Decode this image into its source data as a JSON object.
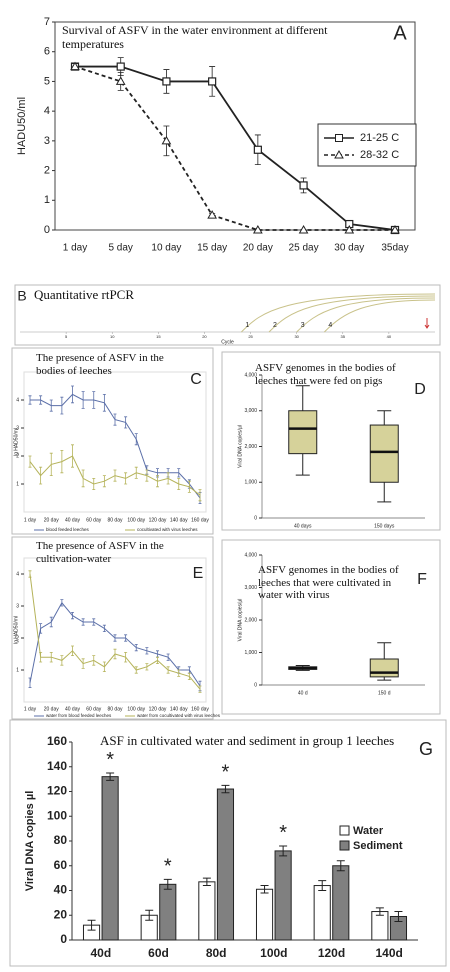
{
  "chart_data": [
    {
      "type": "line",
      "title": "Survival of ASFV in the water environment at different temperatures",
      "label": "A",
      "y_label": "HADU50/ml",
      "categories": [
        "1 day",
        "5 day",
        "10 day",
        "15 day",
        "20 day",
        "25 day",
        "30 day",
        "35day"
      ],
      "ylim": [
        0,
        7
      ],
      "yticks": [
        0,
        1,
        2,
        3,
        4,
        5,
        6,
        7
      ],
      "legend": "right",
      "series": [
        {
          "name": "21-25 C",
          "color": "#222222",
          "marker": "square",
          "dashed": false,
          "values": [
            5.5,
            5.5,
            5.0,
            5.0,
            2.7,
            1.5,
            0.2,
            0.0
          ],
          "errors": [
            0.1,
            0.3,
            0.4,
            0.5,
            0.5,
            0.25,
            0.1,
            0.05
          ]
        },
        {
          "name": "28-32 C",
          "color": "#222222",
          "marker": "triangle",
          "dashed": true,
          "values": [
            5.5,
            5.0,
            3.0,
            0.5,
            0.0,
            0.0,
            0.0,
            0.0
          ],
          "errors": [
            0.1,
            0.3,
            0.5,
            0.05,
            0.0,
            0.0,
            0.0,
            0.0
          ]
        }
      ]
    },
    {
      "type": "amplification",
      "title": "Quantitative rtPCR",
      "label": "B",
      "x_label": "Cycle",
      "xlim": [
        0,
        45
      ],
      "xticks": [
        5,
        10,
        15,
        20,
        25,
        30,
        35,
        40
      ],
      "series": [
        {
          "name": "1",
          "color": "#c9c28a",
          "onset": 24
        },
        {
          "name": "2",
          "color": "#c9c28a",
          "onset": 27
        },
        {
          "name": "3",
          "color": "#c9c28a",
          "onset": 30
        },
        {
          "name": "4",
          "color": "#c9c28a",
          "onset": 33
        }
      ]
    },
    {
      "type": "line",
      "title": "The presence of ASFV in the bodies of leeches",
      "label": "C",
      "y_label": "lg HAD50/ml",
      "categories": [
        "1 day",
        null,
        "20 day",
        null,
        "40 day",
        null,
        "60 day",
        null,
        "80 day",
        null,
        "100 day",
        null,
        "120 day",
        null,
        "140 day",
        null,
        "160 day"
      ],
      "ylim": [
        0,
        5
      ],
      "yticks": [
        1,
        2,
        3,
        4
      ],
      "legend": "bottom",
      "series": [
        {
          "name": "blood feeded leeches",
          "color": "#5b6fa8",
          "values": [
            4.0,
            4.0,
            3.8,
            3.8,
            4.2,
            4.0,
            4.0,
            3.9,
            3.3,
            3.2,
            2.6,
            1.5,
            1.4,
            1.4,
            1.4,
            1.0,
            0.5
          ],
          "errors": [
            0.15,
            0.15,
            0.2,
            0.3,
            0.3,
            0.3,
            0.3,
            0.3,
            0.2,
            0.2,
            0.2,
            0.15,
            0.15,
            0.15,
            0.15,
            0.15,
            0.2
          ]
        },
        {
          "name": "cocultivated with virus leeches",
          "color": "#b5b35a",
          "values": [
            1.8,
            1.3,
            1.7,
            1.8,
            2.0,
            1.2,
            1.0,
            1.1,
            1.3,
            1.2,
            1.4,
            1.3,
            1.1,
            1.2,
            1.0,
            0.9,
            0.6
          ],
          "errors": [
            0.2,
            0.3,
            0.4,
            0.4,
            0.4,
            0.3,
            0.2,
            0.2,
            0.2,
            0.2,
            0.2,
            0.2,
            0.2,
            0.2,
            0.2,
            0.2,
            0.2
          ]
        }
      ]
    },
    {
      "type": "box",
      "title": "ASFV genomes in the bodies of leeches that were fed on pigs",
      "label": "D",
      "y_label": "Viral DNA copies/µl",
      "categories": [
        "40 days",
        "150 days"
      ],
      "color": "#d6d29a",
      "ylim": [
        0,
        4000
      ],
      "yticks": [
        0,
        {
          "value": 1000,
          "label": "1,000"
        },
        {
          "value": 2000,
          "label": "2,000"
        },
        {
          "value": 3000,
          "label": "3,000"
        },
        {
          "value": 4000,
          "label": "4,000"
        }
      ],
      "boxes": [
        {
          "min": 1200,
          "q1": 1800,
          "median": 2500,
          "q3": 3000,
          "max": 3700
        },
        {
          "min": 450,
          "q1": 1000,
          "median": 1850,
          "q3": 2600,
          "max": 3000
        }
      ]
    },
    {
      "type": "line",
      "title": "The presence of ASFV in the cultivation-water",
      "label": "E",
      "y_label": "lg HAD50/ml",
      "categories": [
        "1 day",
        null,
        "20 day",
        null,
        "40 day",
        null,
        "60 day",
        null,
        "80 day",
        null,
        "100 day",
        null,
        "120 day",
        null,
        "140 day",
        null,
        "160 day"
      ],
      "ylim": [
        0,
        4.5
      ],
      "yticks": [
        1,
        2,
        3,
        4
      ],
      "legend": "bottom",
      "series": [
        {
          "name": "water from blood feeded leeches",
          "color": "#5b6fa8",
          "values": [
            0.6,
            2.3,
            2.5,
            3.1,
            2.7,
            2.5,
            2.5,
            2.3,
            2.0,
            2.0,
            1.7,
            1.6,
            1.5,
            1.4,
            1.0,
            1.0,
            0.5
          ],
          "errors": [
            0.15,
            0.15,
            0.15,
            0.1,
            0.1,
            0.1,
            0.1,
            0.1,
            0.1,
            0.1,
            0.1,
            0.1,
            0.1,
            0.1,
            0.1,
            0.1,
            0.15
          ]
        },
        {
          "name": "water from cocultivated with virus leeches",
          "color": "#b5b35a",
          "values": [
            4.0,
            1.4,
            1.4,
            1.3,
            1.6,
            1.2,
            1.3,
            1.1,
            1.5,
            1.4,
            1.0,
            1.1,
            1.3,
            1.0,
            0.9,
            0.8,
            0.4
          ],
          "errors": [
            0.1,
            0.15,
            0.15,
            0.15,
            0.15,
            0.15,
            0.15,
            0.15,
            0.15,
            0.15,
            0.1,
            0.1,
            0.1,
            0.1,
            0.1,
            0.1,
            0.1
          ]
        }
      ]
    },
    {
      "type": "box",
      "title": "ASFV genomes in the bodies of leeches that were cultivated in water with virus",
      "label": "F",
      "y_label": "Viral DNA copies/µl",
      "categories": [
        "40 d",
        "150 d"
      ],
      "color": "#d6d29a",
      "ylim": [
        0,
        4000
      ],
      "yticks": [
        0,
        {
          "value": 1000,
          "label": "1,000"
        },
        {
          "value": 2000,
          "label": "2,000"
        },
        {
          "value": 3000,
          "label": "3,000"
        },
        {
          "value": 4000,
          "label": "4,000"
        }
      ],
      "boxes": [
        {
          "min": 450,
          "q1": 480,
          "median": 520,
          "q3": 560,
          "max": 600
        },
        {
          "min": 150,
          "q1": 250,
          "median": 380,
          "q3": 800,
          "max": 1300
        }
      ]
    },
    {
      "type": "bar",
      "title": "ASF in cultivated water and sediment in group 1 leeches",
      "label": "G",
      "y_label": "Viral DNA copies µl",
      "categories": [
        "40d",
        "60d",
        "80d",
        "100d",
        "120d",
        "140d"
      ],
      "ylim": [
        0,
        160
      ],
      "yticks": [
        0,
        20,
        40,
        60,
        80,
        100,
        120,
        140,
        160
      ],
      "legend": "right",
      "series": [
        {
          "name": "Water",
          "color": "#ffffff",
          "values": [
            12,
            20,
            47,
            41,
            44,
            23
          ],
          "errors": [
            4,
            4,
            3,
            3,
            4,
            3
          ]
        },
        {
          "name": "Sediment",
          "color": "#808080",
          "values": [
            132,
            45,
            122,
            72,
            60,
            19
          ],
          "errors": [
            3,
            4,
            3,
            4,
            4,
            4
          ],
          "annotations": [
            "*",
            "*",
            "*",
            "*",
            null,
            null
          ]
        }
      ]
    }
  ]
}
